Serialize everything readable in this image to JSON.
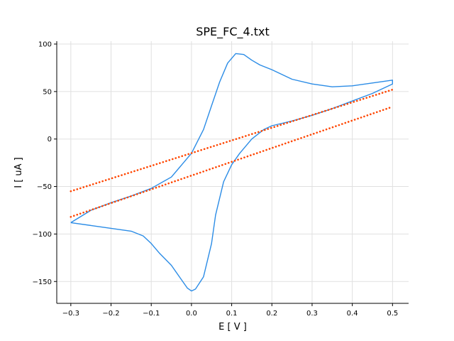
{
  "chart_data": {
    "type": "line",
    "title": "SPE_FC_4.txt",
    "xlabel": "E [ V ]",
    "ylabel": "I [ uA ]",
    "xlim": [
      -0.335,
      0.54
    ],
    "ylim": [
      -173,
      103
    ],
    "grid": true,
    "x_ticks": [
      -0.3,
      -0.2,
      -0.1,
      0.0,
      0.1,
      0.2,
      0.3,
      0.4,
      0.5
    ],
    "x_tick_labels": [
      "−0.3",
      "−0.2",
      "−0.1",
      "0.0",
      "0.1",
      "0.2",
      "0.3",
      "0.4",
      "0.5"
    ],
    "y_ticks": [
      -150,
      -100,
      -50,
      0,
      50,
      100
    ],
    "y_tick_labels": [
      "−150",
      "−100",
      "−50",
      "0",
      "50",
      "100"
    ],
    "colors": {
      "cv_curve": "#2b8ce6",
      "baseline": "#ff4500",
      "grid": "#e0e0e0"
    },
    "series": [
      {
        "style": "solid",
        "color": "#2b8ce6",
        "x": [
          -0.3,
          -0.25,
          -0.2,
          -0.15,
          -0.1,
          -0.05,
          0.0,
          0.03,
          0.05,
          0.07,
          0.09,
          0.11,
          0.13,
          0.15,
          0.17,
          0.2,
          0.25,
          0.3,
          0.35,
          0.4,
          0.45,
          0.5,
          0.5,
          0.45,
          0.4,
          0.35,
          0.3,
          0.25,
          0.2,
          0.18,
          0.15,
          0.12,
          0.1,
          0.08,
          0.06,
          0.05,
          0.03,
          0.01,
          0.0,
          -0.01,
          -0.03,
          -0.05,
          -0.08,
          -0.1,
          -0.12,
          -0.15,
          -0.2,
          -0.25,
          -0.3
        ],
        "y": [
          -88,
          -75,
          -67,
          -60,
          -52,
          -40,
          -15,
          10,
          35,
          60,
          80,
          90,
          89,
          83,
          78,
          73,
          63,
          58,
          55,
          56,
          59,
          62,
          58,
          48,
          40,
          32,
          25,
          19,
          14,
          10,
          0,
          -15,
          -27,
          -45,
          -80,
          -110,
          -145,
          -158,
          -160,
          -157,
          -145,
          -133,
          -120,
          -110,
          -102,
          -97,
          -94,
          -91,
          -88
        ]
      },
      {
        "style": "dotted",
        "color": "#ff4500",
        "x": [
          -0.3,
          0.5
        ],
        "y": [
          -55,
          52
        ]
      },
      {
        "style": "dotted",
        "color": "#ff4500",
        "x": [
          -0.3,
          0.5
        ],
        "y": [
          -82,
          34
        ]
      }
    ]
  }
}
